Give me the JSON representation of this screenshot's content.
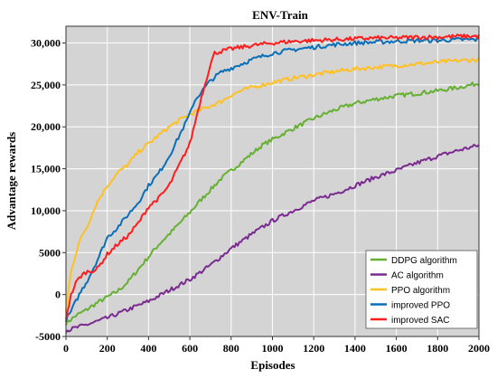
{
  "chart_data": {
    "type": "line",
    "title": "ENV-Train",
    "xlabel": "Episodes",
    "ylabel": "Advantage rewards",
    "xlim": [
      0,
      2000
    ],
    "ylim": [
      -5000,
      32000
    ],
    "x_ticks": [
      0,
      200,
      400,
      600,
      800,
      1000,
      1200,
      1400,
      1600,
      1800,
      2000
    ],
    "x_tick_labels": [
      "0",
      "200",
      "400",
      "600",
      "800",
      "1000",
      "1200",
      "1400",
      "1600",
      "1800",
      "2000"
    ],
    "y_ticks": [
      -5000,
      0,
      5000,
      10000,
      15000,
      20000,
      25000,
      30000
    ],
    "y_tick_labels": [
      "-5000",
      "0",
      "5000",
      "10,000",
      "15,000",
      "20,000",
      "25,000",
      "30,000"
    ],
    "grid": true,
    "background": "#d4d4d4",
    "legend_position": "bottom-right",
    "series": [
      {
        "name": "DDPG algorithm",
        "color": "#66b032",
        "x": [
          0,
          50,
          100,
          150,
          200,
          250,
          300,
          350,
          400,
          450,
          500,
          550,
          600,
          650,
          700,
          750,
          800,
          850,
          900,
          950,
          1000,
          1100,
          1200,
          1300,
          1400,
          1500,
          1600,
          1700,
          1800,
          1900,
          2000
        ],
        "y": [
          -3400,
          -2500,
          -1800,
          -1000,
          -300,
          400,
          1500,
          3000,
          4500,
          6000,
          7200,
          8500,
          9800,
          11200,
          12500,
          13800,
          14800,
          15800,
          16800,
          17800,
          18500,
          19800,
          21000,
          22000,
          22800,
          23300,
          23700,
          24000,
          24300,
          24700,
          25200
        ]
      },
      {
        "name": "AC algorithm",
        "color": "#7b2a91",
        "x": [
          0,
          100,
          200,
          300,
          400,
          500,
          600,
          700,
          800,
          900,
          1000,
          1100,
          1200,
          1300,
          1400,
          1500,
          1600,
          1700,
          1800,
          1900,
          2000
        ],
        "y": [
          -4300,
          -3600,
          -2800,
          -1800,
          -800,
          500,
          1800,
          3500,
          5500,
          7200,
          8800,
          10000,
          11200,
          12000,
          13000,
          14000,
          14800,
          15700,
          16500,
          17200,
          17800
        ]
      },
      {
        "name": "PPO algorithm",
        "color": "#ffc024",
        "x": [
          0,
          25,
          50,
          75,
          100,
          150,
          200,
          250,
          300,
          350,
          400,
          450,
          500,
          550,
          600,
          650,
          700,
          750,
          800,
          850,
          900,
          1000,
          1100,
          1200,
          1300,
          1400,
          1500,
          1600,
          1700,
          1800,
          1900,
          2000
        ],
        "y": [
          -2000,
          3000,
          5000,
          7000,
          8000,
          11000,
          13000,
          14500,
          15500,
          17000,
          18000,
          19000,
          20000,
          20800,
          21500,
          22000,
          22500,
          23000,
          23800,
          24300,
          24700,
          25300,
          25800,
          26200,
          26600,
          26900,
          27100,
          27300,
          27500,
          27700,
          27900,
          28000
        ]
      },
      {
        "name": "improved PPO",
        "color": "#0a6fb8",
        "x": [
          0,
          25,
          50,
          75,
          100,
          150,
          200,
          250,
          300,
          350,
          400,
          450,
          500,
          550,
          600,
          620,
          650,
          700,
          750,
          800,
          850,
          900,
          1000,
          1100,
          1200,
          1300,
          1400,
          1500,
          1600,
          1700,
          1800,
          1900,
          2000
        ],
        "y": [
          -3000,
          -2000,
          -700,
          500,
          1500,
          4000,
          6800,
          8000,
          9500,
          11000,
          13000,
          14500,
          16500,
          19000,
          21500,
          23000,
          24000,
          25500,
          26500,
          27000,
          27500,
          28000,
          28800,
          29200,
          29500,
          29800,
          30000,
          30100,
          30200,
          30300,
          30300,
          30400,
          30400
        ]
      },
      {
        "name": "improved SAC",
        "color": "#ff1c1c",
        "x": [
          0,
          25,
          50,
          75,
          100,
          150,
          200,
          250,
          300,
          350,
          400,
          450,
          500,
          550,
          600,
          650,
          700,
          720,
          750,
          800,
          850,
          900,
          1000,
          1100,
          1200,
          1300,
          1400,
          1500,
          1600,
          1700,
          1800,
          1900,
          2000
        ],
        "y": [
          -2800,
          0,
          1500,
          2300,
          2700,
          3000,
          4800,
          6000,
          7000,
          8500,
          10500,
          11500,
          13000,
          15500,
          18000,
          23000,
          27500,
          28800,
          29000,
          29300,
          29500,
          29700,
          30000,
          30200,
          30300,
          30400,
          30500,
          30600,
          30600,
          30700,
          30700,
          30800,
          30800
        ]
      }
    ]
  }
}
